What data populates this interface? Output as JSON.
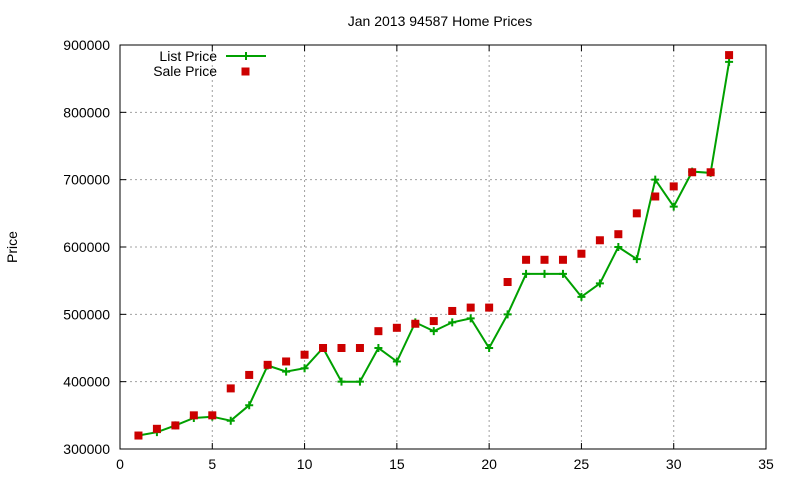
{
  "chart_data": {
    "type": "line",
    "title": "Jan 2013 94587 Home Prices",
    "xlabel": "",
    "ylabel": "Price",
    "xlim": [
      0,
      35
    ],
    "ylim": [
      300000,
      900000
    ],
    "x_ticks": [
      0,
      5,
      10,
      15,
      20,
      25,
      30,
      35
    ],
    "y_ticks": [
      300000,
      400000,
      500000,
      600000,
      700000,
      800000,
      900000
    ],
    "grid": true,
    "legend_position": "top-left",
    "series": [
      {
        "name": "List Price",
        "style": "line-plus",
        "color": "#00a000",
        "x": [
          1,
          2,
          3,
          4,
          5,
          6,
          7,
          8,
          9,
          10,
          11,
          12,
          13,
          14,
          15,
          16,
          17,
          18,
          19,
          20,
          21,
          22,
          23,
          24,
          25,
          26,
          27,
          28,
          29,
          30,
          31,
          32,
          33
        ],
        "y": [
          320000,
          325000,
          335000,
          346000,
          348000,
          342000,
          365000,
          424000,
          415000,
          420000,
          450000,
          400000,
          400000,
          450000,
          430000,
          488000,
          475000,
          488000,
          494000,
          450000,
          500000,
          560000,
          560000,
          560000,
          526000,
          546000,
          600000,
          582000,
          700000,
          660000,
          712000,
          710000,
          875000
        ]
      },
      {
        "name": "Sale Price",
        "style": "square-markers",
        "color": "#cc0000",
        "x": [
          1,
          2,
          3,
          4,
          5,
          6,
          7,
          8,
          9,
          10,
          11,
          12,
          13,
          14,
          15,
          16,
          17,
          18,
          19,
          20,
          21,
          22,
          23,
          24,
          25,
          26,
          27,
          28,
          29,
          30,
          31,
          32,
          33
        ],
        "y": [
          320000,
          330000,
          335000,
          350000,
          350000,
          390000,
          410000,
          425000,
          430000,
          440000,
          450000,
          450000,
          450000,
          475000,
          480000,
          486000,
          490000,
          505000,
          510000,
          510000,
          548000,
          581000,
          581000,
          581000,
          590000,
          610000,
          619000,
          650000,
          675000,
          690000,
          711000,
          711000,
          885000
        ]
      }
    ]
  }
}
